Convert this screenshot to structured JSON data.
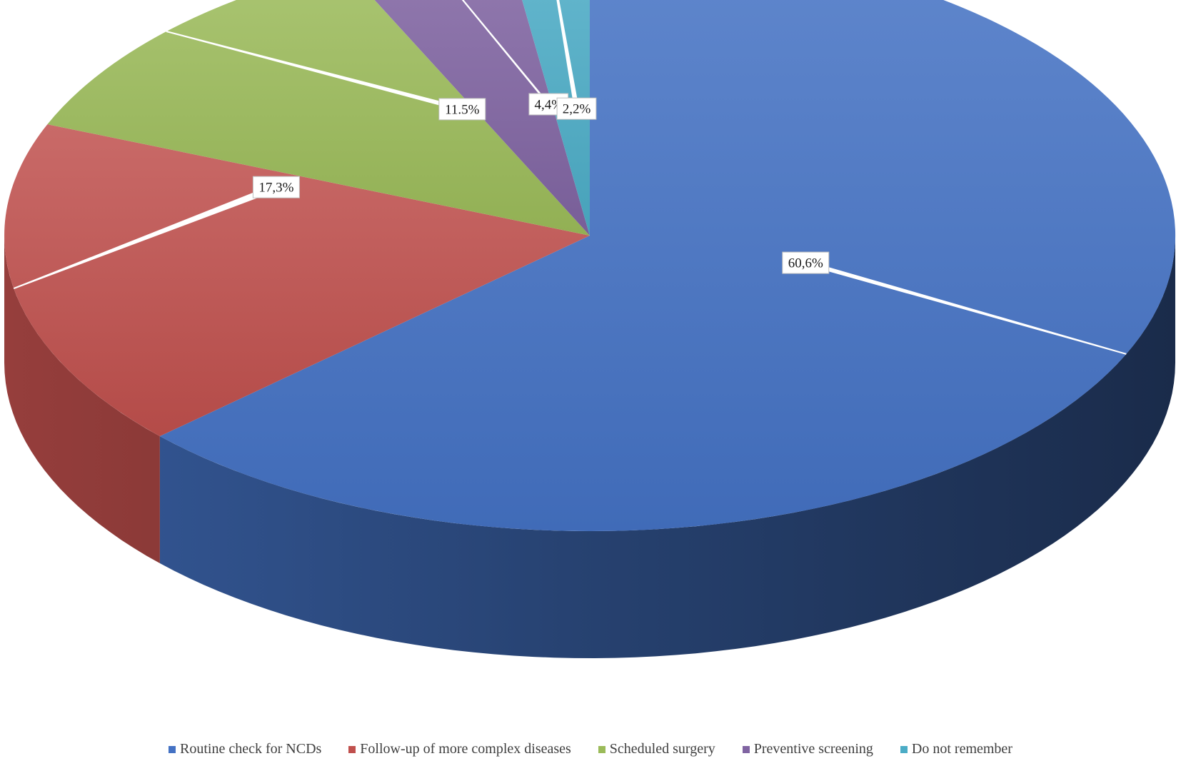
{
  "chart_data": {
    "type": "pie",
    "style": "3d",
    "categories": [
      "Routine check for NCDs",
      "Follow-up of more complex diseases",
      "Scheduled surgery",
      "Preventive screening",
      "Do not remember"
    ],
    "values": [
      60.6,
      17.3,
      11.5,
      4.4,
      2.2
    ],
    "data_labels": [
      "60,6%",
      "17,3%",
      "11.5%",
      "4,4%",
      "2,2%"
    ],
    "colors": [
      "#4472C4",
      "#C0504D",
      "#9BBB59",
      "#8064A2",
      "#4BACC6"
    ],
    "start_angle_deg": 0,
    "direction": "clockwise",
    "legend_position": "bottom"
  }
}
